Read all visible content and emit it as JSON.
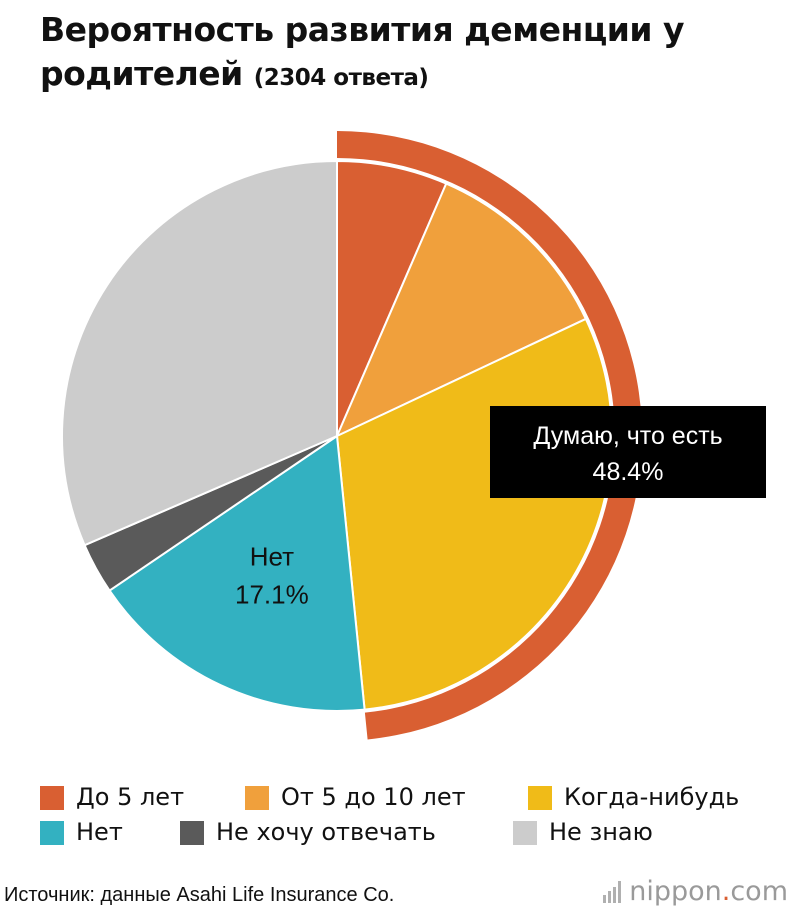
{
  "title": {
    "main": "Вероятность развития деменции у родителей",
    "sub": "(2304 ответа)"
  },
  "chart_data": {
    "type": "pie",
    "title": "Вероятность развития деменции у родителей",
    "subtitle": "(2304 ответа)",
    "start_angle_deg": 0,
    "direction": "clockwise",
    "slices": [
      {
        "name": "До 5 лет",
        "value": 6.5,
        "color": "#d95f32",
        "group": "yes"
      },
      {
        "name": "От 5 до 10 лет",
        "value": 11.5,
        "color": "#f0a03c",
        "group": "yes"
      },
      {
        "name": "Когда-нибудь",
        "value": 30.4,
        "color": "#f0bb18",
        "group": "yes"
      },
      {
        "name": "Нет",
        "value": 17.1,
        "color": "#33b1c1"
      },
      {
        "name": "Не хочу отвечать",
        "value": 3.0,
        "color": "#5a5a5a"
      },
      {
        "name": "Не знаю",
        "value": 31.5,
        "color": "#cccccc"
      }
    ],
    "group_total": {
      "label": "Думаю, что есть",
      "value_label": "48.4%",
      "value": 48.4,
      "color": "#d95f32"
    },
    "annotations": [
      {
        "label": "Нет",
        "value_label": "17.1%"
      }
    ]
  },
  "legend": [
    {
      "label": "До 5 лет",
      "color": "#d95f32"
    },
    {
      "label": "От 5 до 10 лет",
      "color": "#f0a03c"
    },
    {
      "label": "Когда-нибудь",
      "color": "#f0bb18"
    },
    {
      "label": "Нет",
      "color": "#33b1c1"
    },
    {
      "label": "Не хочу отвечать",
      "color": "#5a5a5a"
    },
    {
      "label": "Не знаю",
      "color": "#cccccc"
    }
  ],
  "source": "Источник: данные Asahi Life Insurance Co.",
  "brand": {
    "name": "nippon",
    "dot": ".",
    "suffix": "com",
    "dot_color": "#d95f32"
  }
}
